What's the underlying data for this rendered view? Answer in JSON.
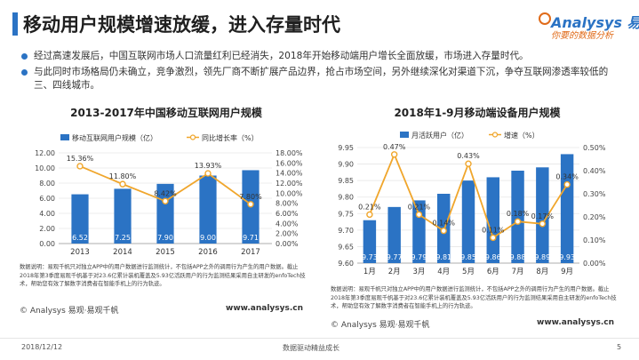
{
  "page": {
    "title": "移动用户规模增速放缓，进入存量时代",
    "logo_main": "Analysys 易观",
    "logo_sub": "你要的数据分析",
    "bullets": [
      "经过高速发展后，中国互联网市场人口流量红利已经消失，2018年开始移动端用户增长全面放缓，市场进入存量时代。",
      "与此同时市场格局仍未确立，竞争激烈，领先厂商不断扩展产品边界，抢占市场空间，另外继续深化对渠道下沉，争夺互联网渗透率较低的三、四线城市。"
    ],
    "footer_date": "2018/12/12",
    "footer_center": "数据驱动精益成长",
    "footer_page": "5"
  },
  "left": {
    "note": "数据说明：易观千帆只对独立APP中的用户数据进行监测统计，不包括APP之外的调用行为产生的用户数据。截止2018年第3季度易观千帆基于对23.6亿累计装机覆盖及5.93亿活跃用户的行为监测结果采用自主研发的enfoTech技术，帮助您有效了解数字消费者在智能手机上的行为轨迹。",
    "brand": "© Analysys 易观·易观千帆",
    "url": "www.analysys.cn"
  },
  "right": {
    "note": "数据说明：易观千帆只对独立APP中的用户数据进行监测统计，不包括APP之外的调用行为产生的用户数据。截止2018年第3季度易观千帆基于对23.6亿累计装机覆盖及5.93亿活跃用户的行为监测结果采用自主研发的enfoTech技术，帮助您有效了解数字消费者在智能手机上的行为轨迹。",
    "brand": "© Analysys 易观·易观千帆",
    "url": "www.analysys.cn"
  },
  "colors": {
    "bar": "#2b73c4",
    "line": "#f0a62c",
    "accent": "#2b73c4"
  },
  "chart_data": [
    {
      "type": "bar",
      "title": "2013-2017年中国移动互联网用户规模",
      "categories": [
        "2013",
        "2014",
        "2015",
        "2016",
        "2017"
      ],
      "series": [
        {
          "name": "移动互联网用户规模（亿）",
          "kind": "bar",
          "axis": "left",
          "values": [
            6.52,
            7.25,
            7.9,
            9.0,
            9.71
          ],
          "labels": [
            "6.52",
            "7.25",
            "7.90",
            "9.00",
            "9.71"
          ]
        },
        {
          "name": "同比增长率（%）",
          "kind": "line",
          "axis": "right",
          "values": [
            15.36,
            11.8,
            8.42,
            13.93,
            7.8
          ],
          "labels": [
            "15.36%",
            "11.80%",
            "8.42%",
            "13.93%",
            "7.80%"
          ]
        }
      ],
      "ylim": [
        0,
        12
      ],
      "yticks": [
        "0.00",
        "2.00",
        "4.00",
        "6.00",
        "8.00",
        "10.00",
        "12.00"
      ],
      "y2lim": [
        0,
        18
      ],
      "y2ticks": [
        "0.00%",
        "2.00%",
        "4.00%",
        "6.00%",
        "8.00%",
        "10.00%",
        "12.00%",
        "14.00%",
        "16.00%",
        "18.00%"
      ],
      "legend": "top"
    },
    {
      "type": "bar",
      "title": "2018年1-9月移动端设备用户规模",
      "categories": [
        "1月",
        "2月",
        "3月",
        "4月",
        "5月",
        "6月",
        "7月",
        "8月",
        "9月"
      ],
      "series": [
        {
          "name": "月活跃用户（亿）",
          "kind": "bar",
          "axis": "left",
          "values": [
            9.73,
            9.77,
            9.79,
            9.81,
            9.85,
            9.86,
            9.88,
            9.89,
            9.93
          ],
          "labels": [
            "9.73",
            "9.77",
            "9.79",
            "9.81",
            "9.85",
            "9.86",
            "9.88",
            "9.89",
            "9.93"
          ]
        },
        {
          "name": "增速（%）",
          "kind": "line",
          "axis": "right",
          "values": [
            0.21,
            0.47,
            0.21,
            0.14,
            0.43,
            0.11,
            0.18,
            0.17,
            0.34
          ],
          "labels": [
            "0.21%",
            "0.47%",
            "0.21%",
            "0.14%",
            "0.43%",
            "0.11%",
            "0.18%",
            "0.17%",
            "0.34%"
          ]
        }
      ],
      "ylim": [
        9.6,
        9.95
      ],
      "yticks": [
        "9.60",
        "9.65",
        "9.70",
        "9.75",
        "9.80",
        "9.85",
        "9.90",
        "9.95"
      ],
      "y2lim": [
        0,
        0.5
      ],
      "y2ticks": [
        "0.00%",
        "0.10%",
        "0.20%",
        "0.30%",
        "0.40%",
        "0.50%"
      ],
      "legend": "top"
    }
  ]
}
